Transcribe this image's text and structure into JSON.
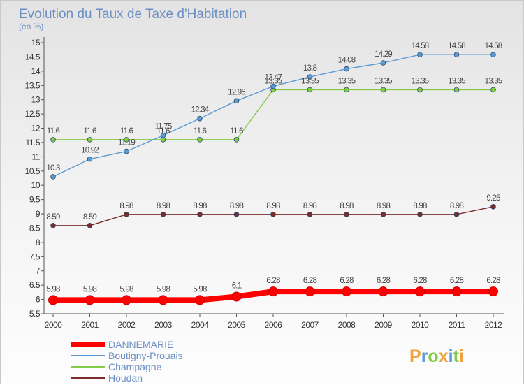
{
  "title": "Evolution du Taux de Taxe d'Habitation",
  "subtitle": "(en %)",
  "logo_text": "Proxiti",
  "chart_data": {
    "type": "line",
    "x": [
      "2000",
      "2001",
      "2002",
      "2003",
      "2004",
      "2005",
      "2006",
      "2007",
      "2008",
      "2009",
      "2010",
      "2011",
      "2012"
    ],
    "ylim": [
      5.5,
      15
    ],
    "yticks": [
      "5.5",
      "6",
      "6.5",
      "7",
      "7.5",
      "8",
      "8.5",
      "9",
      "9.5",
      "10",
      "10.5",
      "11",
      "11.5",
      "12",
      "12.5",
      "13",
      "13.5",
      "14",
      "14.5",
      "15"
    ],
    "grid": false,
    "legend_position": "bottom-left",
    "series": [
      {
        "name": "DANNEMARIE",
        "color": "#ff0000",
        "values": [
          5.98,
          5.98,
          5.98,
          5.98,
          5.98,
          6.1,
          6.28,
          6.28,
          6.28,
          6.28,
          6.28,
          6.28,
          6.28
        ],
        "labels": [
          "5.98",
          "5.98",
          "5.98",
          "5.98",
          "5.98",
          "6.1",
          "6.28",
          "6.28",
          "6.28",
          "6.28",
          "6.28",
          "6.28",
          "6.28"
        ]
      },
      {
        "name": "Boutigny-Prouais",
        "color": "#5b9bd5",
        "values": [
          10.3,
          10.92,
          11.19,
          11.75,
          12.34,
          12.96,
          13.47,
          13.8,
          14.08,
          14.29,
          14.58,
          14.58,
          14.58
        ],
        "labels": [
          "10.3",
          "10.92",
          "11.19",
          "11.75",
          "12.34",
          "12.96",
          "13.47",
          "13.8",
          "14.08",
          "14.29",
          "14.58",
          "14.58",
          "14.58"
        ]
      },
      {
        "name": "Champagne",
        "color": "#80cc44",
        "values": [
          11.6,
          11.6,
          11.6,
          11.6,
          11.6,
          11.6,
          13.35,
          13.35,
          13.35,
          13.35,
          13.35,
          13.35,
          13.35
        ],
        "labels": [
          "11.6",
          "11.6",
          "11.6",
          "11.6",
          "11.6",
          "11.6",
          "13.35",
          "13.35",
          "13.35",
          "13.35",
          "13.35",
          "13.35",
          "13.35"
        ]
      },
      {
        "name": "Houdan",
        "color": "#7b2c2c",
        "values": [
          8.59,
          8.59,
          8.98,
          8.98,
          8.98,
          8.98,
          8.98,
          8.98,
          8.98,
          8.98,
          8.98,
          8.98,
          9.25
        ],
        "labels": [
          "8.59",
          "8.59",
          "8.98",
          "8.98",
          "8.98",
          "8.98",
          "8.98",
          "8.98",
          "8.98",
          "8.98",
          "8.98",
          "8.98",
          "9.25"
        ]
      }
    ]
  }
}
